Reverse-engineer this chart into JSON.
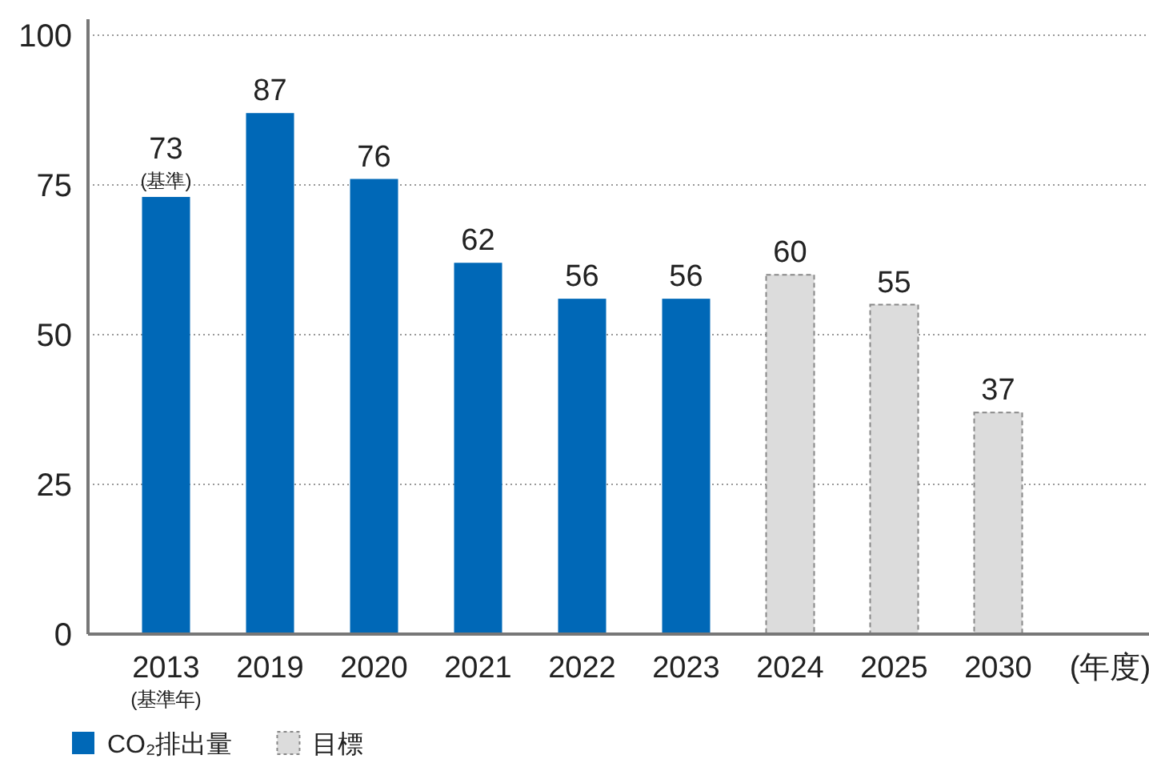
{
  "chart_data": {
    "type": "bar",
    "categories": [
      "2013\n(基準年)",
      "2019",
      "2020",
      "2021",
      "2022",
      "2023",
      "2024",
      "2025",
      "2030"
    ],
    "xlabel": "(年度)",
    "series": [
      {
        "name": "CO₂排出量",
        "color": "#0068b7",
        "values": [
          73,
          87,
          76,
          62,
          56,
          56,
          null,
          null,
          null
        ]
      },
      {
        "name": "目標",
        "color": "#dcdcdc",
        "line_style": "dashed",
        "values": [
          null,
          null,
          null,
          null,
          null,
          null,
          60,
          55,
          37
        ]
      }
    ],
    "ylim": [
      0,
      100
    ],
    "yticks": [
      0,
      25,
      50,
      75,
      100
    ],
    "grid": "y",
    "data_labels": true,
    "legend": "bottom left",
    "annotations": [
      {
        "text": "(基準)",
        "x": "2013\n(基準年)",
        "y": 73
      }
    ]
  }
}
